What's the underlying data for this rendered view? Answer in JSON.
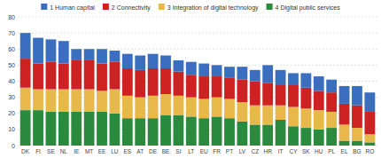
{
  "chart_data": {
    "type": "bar",
    "stacked": true,
    "grid": true,
    "legend": "top",
    "categories": [
      "DK",
      "FI",
      "SE",
      "NL",
      "IE",
      "MT",
      "EE",
      "LU",
      "ES",
      "AT",
      "DE",
      "BE",
      "SI",
      "LT",
      "EU",
      "FR",
      "PT",
      "LV",
      "CZ",
      "HR",
      "IT",
      "CY",
      "SK",
      "HU",
      "PL",
      "EL",
      "BG",
      "RO"
    ],
    "series": [
      {
        "name": "4 Digital public services",
        "color": "#2a8a3e",
        "values": [
          22,
          22,
          21,
          21,
          21,
          21,
          21,
          20,
          17,
          17,
          17,
          19,
          19,
          18,
          17,
          18,
          17,
          15,
          13,
          13,
          16,
          12,
          11,
          10,
          11,
          3,
          3,
          2
        ]
      },
      {
        "name": "3 Integration of digital technology",
        "color": "#e8b84b",
        "values": [
          14,
          13,
          14,
          14,
          14,
          14,
          13,
          15,
          14,
          13,
          14,
          13,
          12,
          12,
          12,
          12,
          12,
          12,
          12,
          12,
          9,
          12,
          12,
          12,
          10,
          10,
          8,
          5
        ]
      },
      {
        "name": "2 Connectivity",
        "color": "#cc2222",
        "values": [
          18,
          16,
          17,
          16,
          18,
          18,
          17,
          17,
          17,
          17,
          17,
          16,
          15,
          14,
          14,
          13,
          13,
          14,
          15,
          14,
          13,
          14,
          13,
          12,
          12,
          13,
          14,
          14
        ]
      },
      {
        "name": "1 Human capital",
        "color": "#3a6ebf",
        "values": [
          16,
          16,
          14,
          14,
          7,
          7,
          9,
          7,
          9,
          9,
          9,
          8,
          7,
          8,
          8,
          7,
          7,
          8,
          7,
          11,
          9,
          7,
          9,
          9,
          8,
          11,
          12,
          12
        ]
      }
    ],
    "ylim": [
      0,
      80
    ],
    "yticks": [
      0,
      10,
      20,
      30,
      40,
      50,
      60,
      70,
      80
    ]
  }
}
